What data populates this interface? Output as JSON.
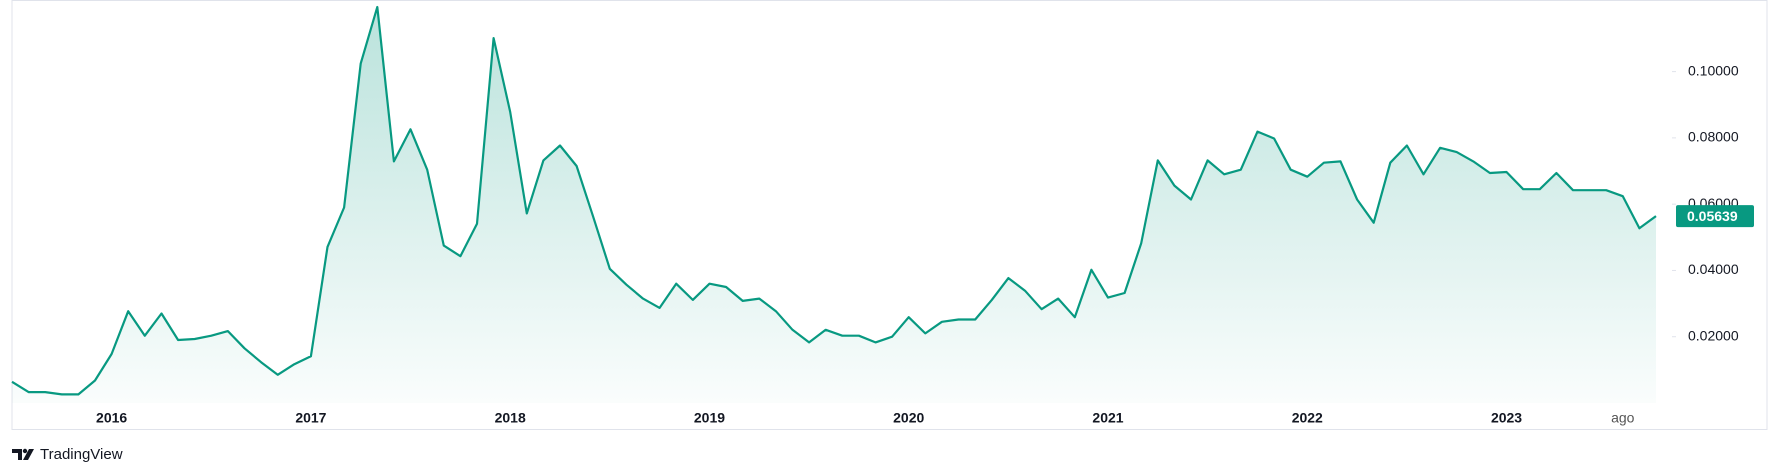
{
  "chart_data": {
    "type": "area",
    "brand": "TradingView",
    "color": "#089981",
    "categories": [
      null,
      null,
      null,
      null,
      null,
      null,
      "2016",
      null,
      null,
      null,
      null,
      null,
      null,
      null,
      null,
      null,
      null,
      null,
      "2017",
      null,
      null,
      null,
      null,
      null,
      null,
      null,
      null,
      null,
      null,
      null,
      "2018",
      null,
      null,
      null,
      null,
      null,
      null,
      null,
      null,
      null,
      null,
      null,
      "2019",
      null,
      null,
      null,
      null,
      null,
      null,
      null,
      null,
      null,
      null,
      null,
      "2020",
      null,
      null,
      null,
      null,
      null,
      null,
      null,
      null,
      null,
      null,
      null,
      "2021",
      null,
      null,
      null,
      null,
      null,
      null,
      null,
      null,
      null,
      null,
      null,
      "2022",
      null,
      null,
      null,
      null,
      null,
      null,
      null,
      null,
      null,
      null,
      null,
      "2023",
      null,
      null,
      null,
      null,
      null,
      null,
      "ago",
      null,
      null
    ],
    "values": [
      0.0064,
      0.0033,
      0.0033,
      0.0026,
      0.0026,
      0.0068,
      0.0148,
      0.0277,
      0.0203,
      0.027,
      0.019,
      0.0193,
      0.0203,
      0.0217,
      0.0165,
      0.0123,
      0.0085,
      0.0117,
      0.0141,
      0.0471,
      0.059,
      0.1024,
      0.1195,
      0.0729,
      0.0826,
      0.0704,
      0.0475,
      0.0443,
      0.0541,
      0.1101,
      0.0878,
      0.0572,
      0.0732,
      0.0777,
      0.0715,
      0.0562,
      0.0405,
      0.0357,
      0.0315,
      0.0287,
      0.036,
      0.0311,
      0.036,
      0.035,
      0.0308,
      0.0315,
      0.0277,
      0.0221,
      0.0183,
      0.0221,
      0.0203,
      0.0203,
      0.0183,
      0.02,
      0.0259,
      0.021,
      0.0245,
      0.0252,
      0.0252,
      0.0311,
      0.0377,
      0.0339,
      0.0283,
      0.0315,
      0.0259,
      0.0402,
      0.0318,
      0.0332,
      0.0482,
      0.0732,
      0.0656,
      0.0614,
      0.0732,
      0.069,
      0.0704,
      0.0819,
      0.0798,
      0.0704,
      0.0683,
      0.0725,
      0.0729,
      0.0614,
      0.0544,
      0.0725,
      0.0777,
      0.069,
      0.077,
      0.0757,
      0.0729,
      0.0694,
      0.0697,
      0.0645,
      0.0645,
      0.0694,
      0.0642,
      0.0642,
      0.0642,
      0.0624,
      0.0527,
      0.05639
    ],
    "ylim": [
      0,
      0.121
    ],
    "yticks": [
      {
        "value": 0.02,
        "label": "0.02000"
      },
      {
        "value": 0.04,
        "label": "0.04000"
      },
      {
        "value": 0.06,
        "label": "0.06000"
      },
      {
        "value": 0.08,
        "label": "0.08000"
      },
      {
        "value": 0.1,
        "label": "0.10000"
      }
    ]
  }
}
